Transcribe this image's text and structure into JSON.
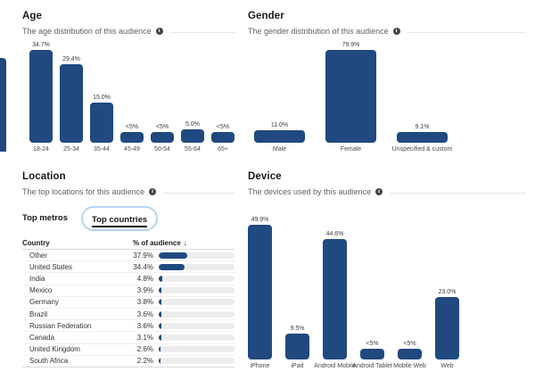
{
  "sections": {
    "age": {
      "title": "Age",
      "subtitle": "The age distribution of this audience"
    },
    "gender": {
      "title": "Gender",
      "subtitle": "The gender distribution of this audience"
    },
    "location": {
      "title": "Location",
      "subtitle": "The top locations for this audience"
    },
    "device": {
      "title": "Device",
      "subtitle": "The devices used by this audience"
    }
  },
  "location": {
    "tabs": [
      {
        "label": "Top metros",
        "selected": false
      },
      {
        "label": "Top countries",
        "selected": true
      }
    ],
    "table": {
      "columns": [
        "Country",
        "% of audience"
      ],
      "sort_indicator": "↓",
      "rows": [
        {
          "country": "Other",
          "pct": "37.9%",
          "value": 37.9
        },
        {
          "country": "United States",
          "pct": "34.4%",
          "value": 34.4
        },
        {
          "country": "India",
          "pct": "4.8%",
          "value": 4.8
        },
        {
          "country": "Mexico",
          "pct": "3.9%",
          "value": 3.9
        },
        {
          "country": "Germany",
          "pct": "3.8%",
          "value": 3.8
        },
        {
          "country": "Brazil",
          "pct": "3.6%",
          "value": 3.6
        },
        {
          "country": "Russian Federation",
          "pct": "3.6%",
          "value": 3.6
        },
        {
          "country": "Canada",
          "pct": "3.1%",
          "value": 3.1
        },
        {
          "country": "United Kingdom",
          "pct": "2.6%",
          "value": 2.6
        },
        {
          "country": "South Africa",
          "pct": "2.2%",
          "value": 2.2
        }
      ]
    }
  },
  "chart_data": [
    {
      "id": "age",
      "type": "bar",
      "title": "Age",
      "categories": [
        "18-24",
        "25-34",
        "35-44",
        "45-49",
        "50-54",
        "55-64",
        "65+"
      ],
      "values": [
        34.7,
        29.4,
        15.0,
        4,
        4,
        5.0,
        4
      ],
      "labels": [
        "34.7%",
        "29.4%",
        "15.0%",
        "<5%",
        "<5%",
        "5.0%",
        "<5%"
      ],
      "xlabel": "",
      "ylabel": "",
      "ylim": [
        0,
        35
      ],
      "grid": false,
      "legend": false
    },
    {
      "id": "gender",
      "type": "bar",
      "title": "Gender",
      "categories": [
        "Male",
        "Female",
        "Unspecified & custom"
      ],
      "values": [
        11.0,
        79.9,
        9.1
      ],
      "labels": [
        "11.0%",
        "79.9%",
        "9.1%"
      ],
      "xlabel": "",
      "ylabel": "",
      "ylim": [
        0,
        80
      ],
      "grid": false,
      "legend": false
    },
    {
      "id": "device",
      "type": "bar",
      "title": "Device",
      "categories": [
        "iPhone",
        "iPad",
        "Android Mobile",
        "Android Tablet",
        "Mobile Web",
        "Web"
      ],
      "values": [
        49.9,
        9.5,
        44.6,
        4,
        4,
        23.0
      ],
      "labels": [
        "49.9%",
        "9.5%",
        "44.6%",
        "<5%",
        "<5%",
        "23.0%"
      ],
      "xlabel": "",
      "ylabel": "",
      "ylim": [
        0,
        50
      ],
      "grid": false,
      "legend": false
    },
    {
      "id": "location-countries",
      "type": "bar",
      "title": "Location — Top countries (% of audience)",
      "categories": [
        "Other",
        "United States",
        "India",
        "Mexico",
        "Germany",
        "Brazil",
        "Russian Federation",
        "Canada",
        "United Kingdom",
        "South Africa"
      ],
      "values": [
        37.9,
        34.4,
        4.8,
        3.9,
        3.8,
        3.6,
        3.6,
        3.1,
        2.6,
        2.2
      ],
      "labels": [
        "37.9%",
        "34.4%",
        "4.8%",
        "3.9%",
        "3.8%",
        "3.6%",
        "3.6%",
        "3.1%",
        "2.6%",
        "2.2%"
      ],
      "xlabel": "Country",
      "ylabel": "% of audience",
      "ylim": [
        0,
        100
      ],
      "grid": false,
      "legend": false
    }
  ],
  "colors": {
    "bar_blue": "#20497f",
    "track_gray": "#ededed",
    "tab_focus_ring": "#b4d6f3",
    "info_icon_bg": "#454545"
  }
}
